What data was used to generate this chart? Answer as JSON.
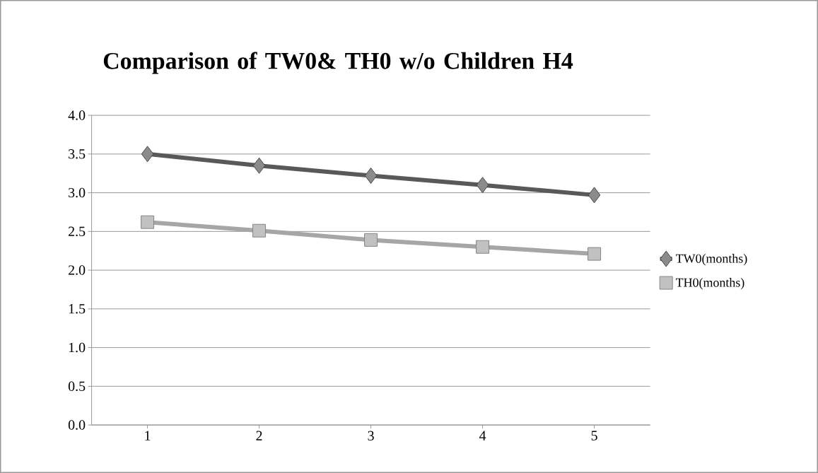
{
  "chart_data": {
    "type": "line",
    "title": "Comparison of TW0& TH0 w/o Children H4",
    "categories": [
      "1",
      "2",
      "3",
      "4",
      "5"
    ],
    "series": [
      {
        "name": "TW0(months)",
        "color": "#595959",
        "marker": "diamond",
        "values": [
          3.5,
          3.35,
          3.22,
          3.1,
          2.97
        ]
      },
      {
        "name": "TH0(months)",
        "color": "#a6a6a6",
        "marker": "square",
        "values": [
          2.62,
          2.51,
          2.39,
          2.3,
          2.21
        ]
      }
    ],
    "ylim": [
      0,
      4
    ],
    "yticks": [
      {
        "value": 0,
        "label": "0.0"
      },
      {
        "value": 0.5,
        "label": "0.5"
      },
      {
        "value": 1,
        "label": "1.0"
      },
      {
        "value": 1.5,
        "label": "1.5"
      },
      {
        "value": 2,
        "label": "2.0"
      },
      {
        "value": 2.5,
        "label": "2.5"
      },
      {
        "value": 3,
        "label": "3.0"
      },
      {
        "value": 3.5,
        "label": "3.5"
      },
      {
        "value": 4,
        "label": "4.0"
      }
    ],
    "grid": "y",
    "legend": "right",
    "line_style": "solid"
  }
}
